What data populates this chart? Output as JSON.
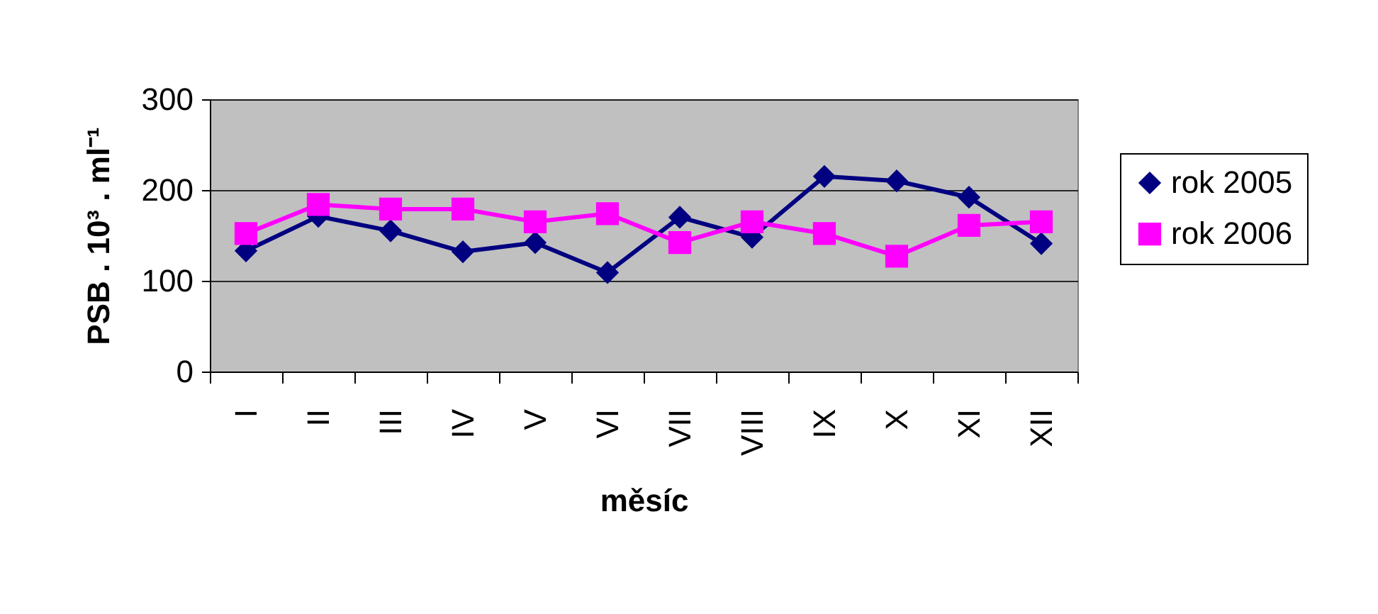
{
  "chart_data": {
    "type": "line",
    "xlabel": "měsíc",
    "ylabel": "PSB . 10³ . ml⁻¹",
    "categories": [
      "I",
      "II",
      "III",
      "IV",
      "V",
      "VI",
      "VII",
      "VIII",
      "IX",
      "X",
      "XI",
      "XII"
    ],
    "series": [
      {
        "name": "rok 2005",
        "color": "#000080",
        "marker": "diamond",
        "values": [
          133,
          171,
          155,
          132,
          142,
          109,
          170,
          148,
          215,
          210,
          192,
          141
        ]
      },
      {
        "name": "rok 2006",
        "color": "#ff00ff",
        "marker": "square",
        "values": [
          152,
          184,
          179,
          179,
          165,
          174,
          142,
          165,
          152,
          127,
          161,
          165
        ]
      }
    ],
    "ylim": [
      0,
      300
    ],
    "yticks": [
      0,
      100,
      200,
      300
    ],
    "grid": "y",
    "legend": "right"
  }
}
